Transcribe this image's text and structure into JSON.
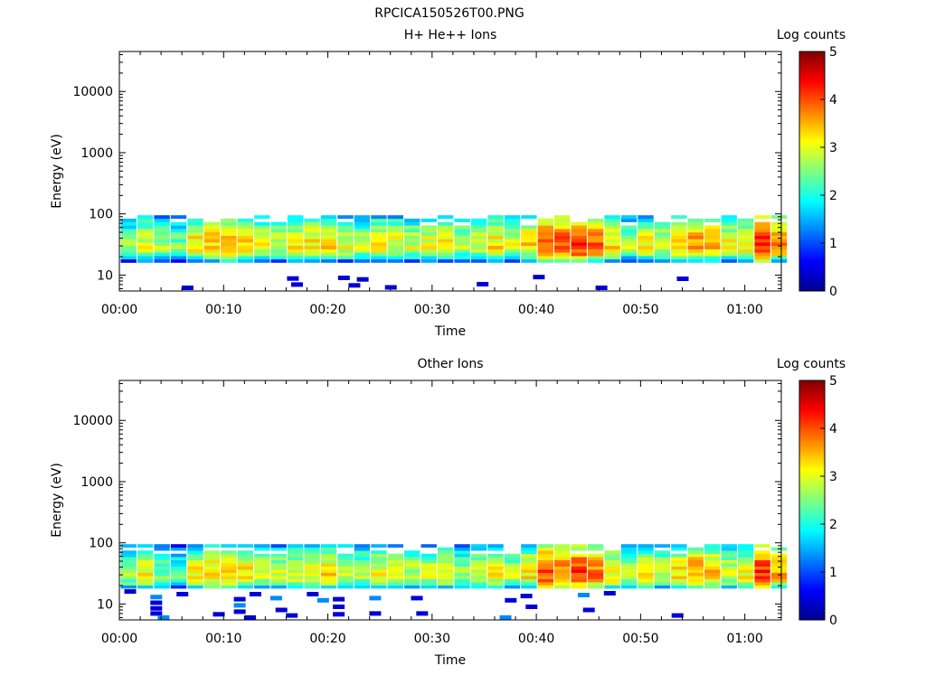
{
  "figure_title": "RPCICA150526T00.PNG",
  "colormap_stops": [
    "#00008f",
    "#0000ff",
    "#007fff",
    "#00ffff",
    "#7fff7f",
    "#ffff00",
    "#ff7f00",
    "#ff0000",
    "#7f0000"
  ],
  "chart_data": [
    {
      "type": "heatmap",
      "title": "H+ He++ Ions",
      "xlabel": "Time",
      "ylabel": "Energy (eV)",
      "x_ticks": [
        "00:00",
        "00:10",
        "00:20",
        "00:30",
        "00:40",
        "00:50",
        "01:00"
      ],
      "y_ticks": [
        "10",
        "100",
        "1000",
        "10000"
      ],
      "ylim": [
        5.5,
        45000
      ],
      "yscale": "log",
      "colorbar": {
        "label": "Log counts",
        "ticks": [
          "0",
          "1",
          "2",
          "3",
          "4",
          "5"
        ],
        "range": [
          0,
          5
        ]
      },
      "time_bins_min": [
        0,
        1.6,
        3.2,
        4.8,
        6.4,
        8.0,
        9.6,
        11.2,
        12.8,
        14.4,
        16.0,
        17.6,
        19.2,
        20.8,
        22.4,
        24.0,
        25.6,
        27.2,
        28.8,
        30.4,
        32.0,
        33.6,
        35.2,
        36.8,
        38.4,
        40.0,
        41.6,
        43.2,
        44.8,
        46.4,
        48.0,
        49.6,
        51.2,
        52.8,
        54.4,
        56.0,
        57.6,
        59.2,
        60.8,
        62.4
      ],
      "energy_band_eV": [
        16,
        95
      ],
      "peak_energy_eV": 30,
      "peak_log_counts": [
        2.6,
        3.0,
        2.7,
        2.4,
        3.2,
        3.4,
        3.5,
        3.4,
        3.0,
        2.9,
        3.1,
        3.2,
        3.3,
        3.0,
        2.8,
        3.1,
        3.0,
        2.9,
        3.0,
        3.1,
        2.8,
        3.0,
        3.2,
        2.9,
        3.3,
        4.1,
        4.0,
        4.2,
        3.9,
        3.3,
        2.8,
        3.1,
        2.9,
        3.4,
        3.7,
        3.5,
        3.0,
        3.2,
        4.3,
        3.6
      ],
      "low_energy_scatter": [
        {
          "t": 6.5,
          "e": 6.2
        },
        {
          "t": 17.0,
          "e": 7.0
        },
        {
          "t": 16.6,
          "e": 8.8
        },
        {
          "t": 21.5,
          "e": 9.0
        },
        {
          "t": 22.5,
          "e": 6.8
        },
        {
          "t": 23.3,
          "e": 8.5
        },
        {
          "t": 26.0,
          "e": 6.3
        },
        {
          "t": 34.8,
          "e": 7.1
        },
        {
          "t": 40.2,
          "e": 9.3
        },
        {
          "t": 46.2,
          "e": 6.2
        },
        {
          "t": 54.0,
          "e": 8.7
        }
      ]
    },
    {
      "type": "heatmap",
      "title": "Other Ions",
      "xlabel": "Time",
      "ylabel": "Energy (eV)",
      "x_ticks": [
        "00:00",
        "00:10",
        "00:20",
        "00:30",
        "00:40",
        "00:50",
        "01:00"
      ],
      "y_ticks": [
        "10",
        "100",
        "1000",
        "10000"
      ],
      "ylim": [
        5.5,
        45000
      ],
      "yscale": "log",
      "colorbar": {
        "label": "Log counts",
        "ticks": [
          "0",
          "1",
          "2",
          "3",
          "4",
          "5"
        ],
        "range": [
          0,
          5
        ]
      },
      "time_bins_min": [
        0,
        1.6,
        3.2,
        4.8,
        6.4,
        8.0,
        9.6,
        11.2,
        12.8,
        14.4,
        16.0,
        17.6,
        19.2,
        20.8,
        22.4,
        24.0,
        25.6,
        27.2,
        28.8,
        30.4,
        32.0,
        33.6,
        35.2,
        36.8,
        38.4,
        40.0,
        41.6,
        43.2,
        44.8,
        46.4,
        48.0,
        49.6,
        51.2,
        52.8,
        54.4,
        56.0,
        57.6,
        59.2,
        60.8,
        62.4
      ],
      "energy_band_eV": [
        18,
        95
      ],
      "peak_energy_eV": 30,
      "peak_log_counts": [
        2.7,
        3.1,
        2.5,
        2.3,
        3.1,
        3.3,
        3.4,
        3.3,
        2.9,
        2.8,
        3.0,
        3.1,
        3.2,
        2.9,
        2.7,
        3.0,
        2.9,
        2.8,
        2.9,
        3.0,
        2.7,
        2.9,
        3.1,
        2.8,
        3.2,
        4.0,
        3.9,
        4.1,
        3.8,
        3.2,
        2.7,
        3.0,
        2.8,
        3.3,
        3.6,
        3.4,
        2.9,
        3.1,
        4.2,
        3.5
      ],
      "low_energy_scatter": [
        {
          "t": 1.0,
          "e": 16.0
        },
        {
          "t": 3.5,
          "e": 13.0
        },
        {
          "t": 3.5,
          "e": 10.5
        },
        {
          "t": 3.5,
          "e": 8.5
        },
        {
          "t": 3.5,
          "e": 7.0
        },
        {
          "t": 4.2,
          "e": 6.0
        },
        {
          "t": 6.0,
          "e": 14.5
        },
        {
          "t": 9.5,
          "e": 6.8
        },
        {
          "t": 11.5,
          "e": 12.0
        },
        {
          "t": 11.5,
          "e": 9.5
        },
        {
          "t": 11.5,
          "e": 7.5
        },
        {
          "t": 12.5,
          "e": 6.0
        },
        {
          "t": 13.0,
          "e": 14.5
        },
        {
          "t": 15.0,
          "e": 12.5
        },
        {
          "t": 15.5,
          "e": 8.0
        },
        {
          "t": 16.5,
          "e": 6.5
        },
        {
          "t": 18.5,
          "e": 14.5
        },
        {
          "t": 19.5,
          "e": 11.5
        },
        {
          "t": 21.0,
          "e": 12.0
        },
        {
          "t": 21.0,
          "e": 9.0
        },
        {
          "t": 21.0,
          "e": 6.8
        },
        {
          "t": 24.5,
          "e": 12.5
        },
        {
          "t": 24.5,
          "e": 7.0
        },
        {
          "t": 28.5,
          "e": 12.5
        },
        {
          "t": 29.0,
          "e": 7.0
        },
        {
          "t": 37.0,
          "e": 6.0
        },
        {
          "t": 37.5,
          "e": 11.5
        },
        {
          "t": 39.0,
          "e": 13.5
        },
        {
          "t": 39.5,
          "e": 9.0
        },
        {
          "t": 44.5,
          "e": 14.0
        },
        {
          "t": 45.0,
          "e": 8.0
        },
        {
          "t": 47.0,
          "e": 15.0
        },
        {
          "t": 53.5,
          "e": 6.5
        }
      ]
    }
  ]
}
